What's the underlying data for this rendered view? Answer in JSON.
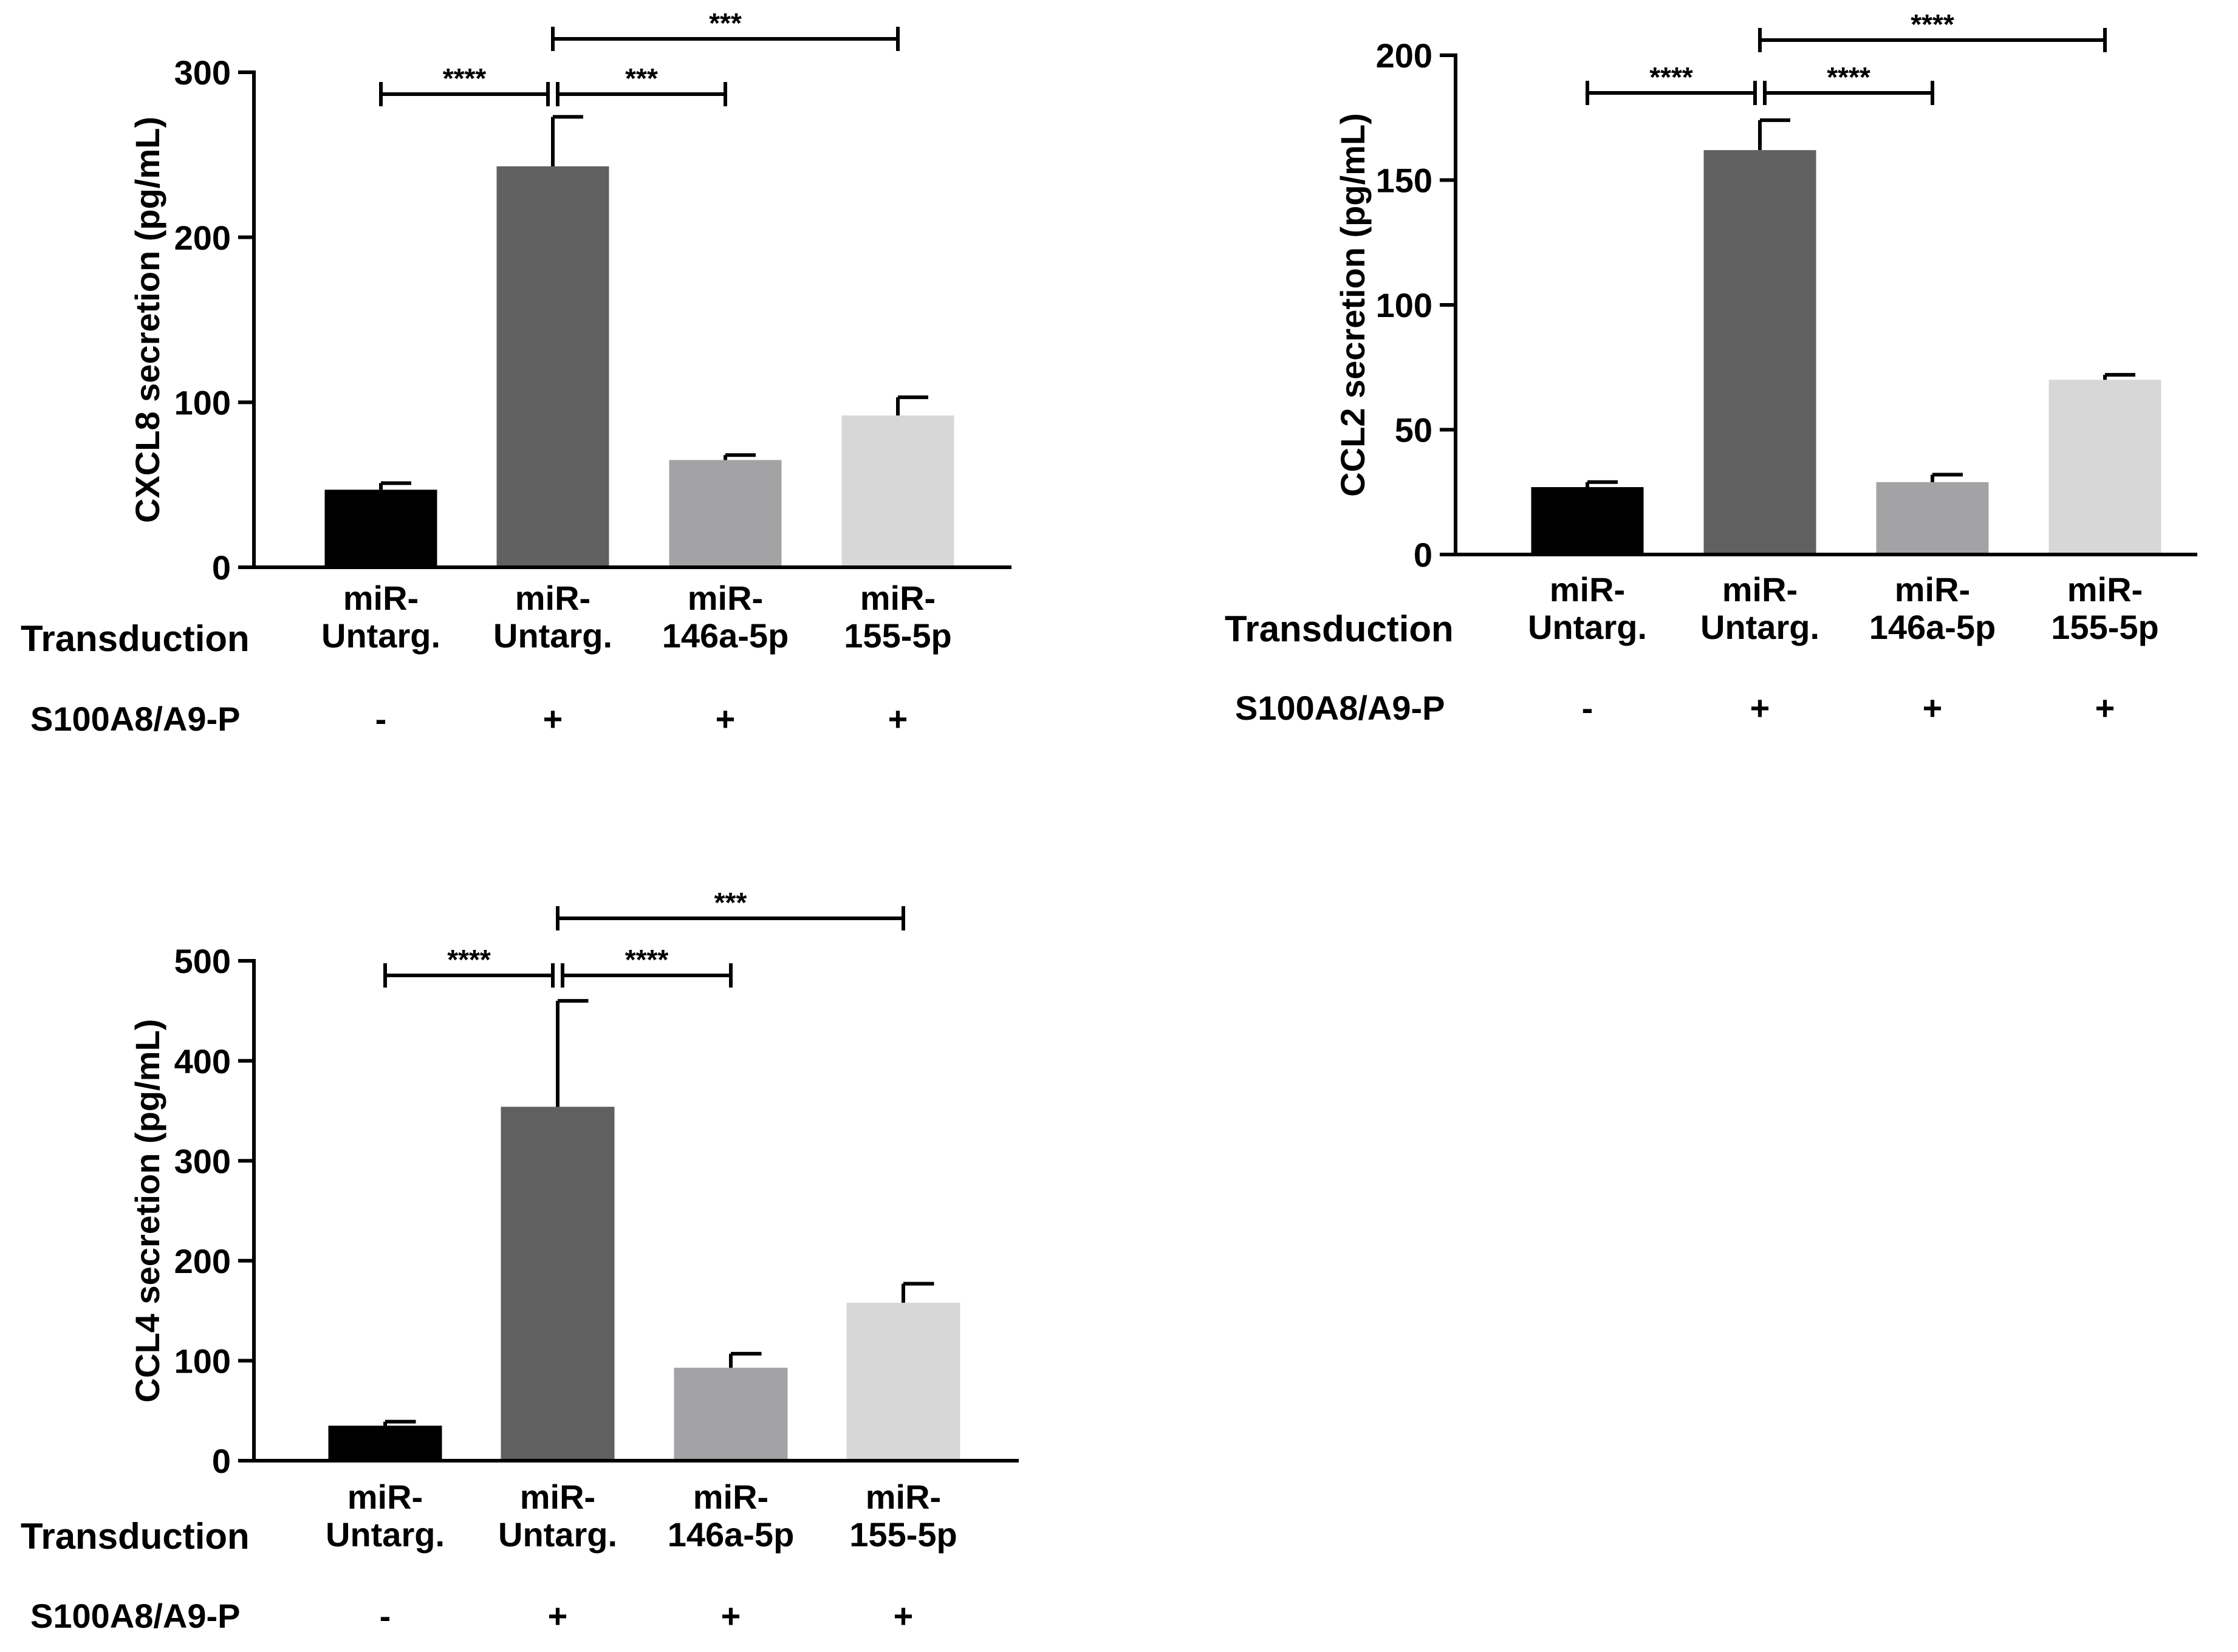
{
  "colors": {
    "axis": "#000000",
    "bar_colors": [
      "#000000",
      "#606060",
      "#a3a3a6",
      "#d7d7d7"
    ]
  },
  "row_labels": {
    "transduction": "Transduction",
    "treatment": "S100A8/A9-P"
  },
  "chart_data": [
    {
      "type": "bar",
      "panel": "top-left",
      "ylabel": "CXCL8 secretion (pg/mL)",
      "ylim": [
        0,
        300
      ],
      "yticks": [
        0,
        100,
        200,
        300
      ],
      "categories": [
        [
          "miR-",
          "Untarg."
        ],
        [
          "miR-",
          "Untarg."
        ],
        [
          "miR-",
          "146a-5p"
        ],
        [
          "miR-",
          "155-5p"
        ]
      ],
      "treatment": [
        "-",
        "+",
        "+",
        "+"
      ],
      "values": [
        47,
        243,
        65,
        92
      ],
      "errors": [
        4,
        30,
        3,
        11
      ],
      "significance": [
        {
          "from": 0,
          "to": 1,
          "label": "****",
          "level": 1
        },
        {
          "from": 1,
          "to": 2,
          "label": "***",
          "level": 1
        },
        {
          "from": 1,
          "to": 3,
          "label": "***",
          "level": 2
        }
      ]
    },
    {
      "type": "bar",
      "panel": "top-right",
      "ylabel": "CCL2 secretion (pg/mL)",
      "ylim": [
        0,
        200
      ],
      "yticks": [
        0,
        50,
        100,
        150,
        200
      ],
      "categories": [
        [
          "miR-",
          "Untarg."
        ],
        [
          "miR-",
          "Untarg."
        ],
        [
          "miR-",
          "146a-5p"
        ],
        [
          "miR-",
          "155-5p"
        ]
      ],
      "treatment": [
        "-",
        "+",
        "+",
        "+"
      ],
      "values": [
        27,
        162,
        29,
        70
      ],
      "errors": [
        2,
        12,
        3,
        2
      ],
      "significance": [
        {
          "from": 0,
          "to": 1,
          "label": "****",
          "level": 1
        },
        {
          "from": 1,
          "to": 2,
          "label": "****",
          "level": 1
        },
        {
          "from": 1,
          "to": 3,
          "label": "****",
          "level": 2
        }
      ]
    },
    {
      "type": "bar",
      "panel": "bottom-left",
      "ylabel": "CCL4 secretion (pg/mL)",
      "ylim": [
        0,
        500
      ],
      "yticks": [
        0,
        100,
        200,
        300,
        400,
        500
      ],
      "categories": [
        [
          "miR-",
          "Untarg."
        ],
        [
          "miR-",
          "Untarg."
        ],
        [
          "miR-",
          "146a-5p"
        ],
        [
          "miR-",
          "155-5p"
        ]
      ],
      "treatment": [
        "-",
        "+",
        "+",
        "+"
      ],
      "values": [
        35,
        354,
        93,
        158
      ],
      "errors": [
        4,
        106,
        14,
        19
      ],
      "significance": [
        {
          "from": 0,
          "to": 1,
          "label": "****",
          "level": 1
        },
        {
          "from": 1,
          "to": 2,
          "label": "****",
          "level": 1
        },
        {
          "from": 1,
          "to": 3,
          "label": "***",
          "level": 2
        }
      ]
    }
  ]
}
